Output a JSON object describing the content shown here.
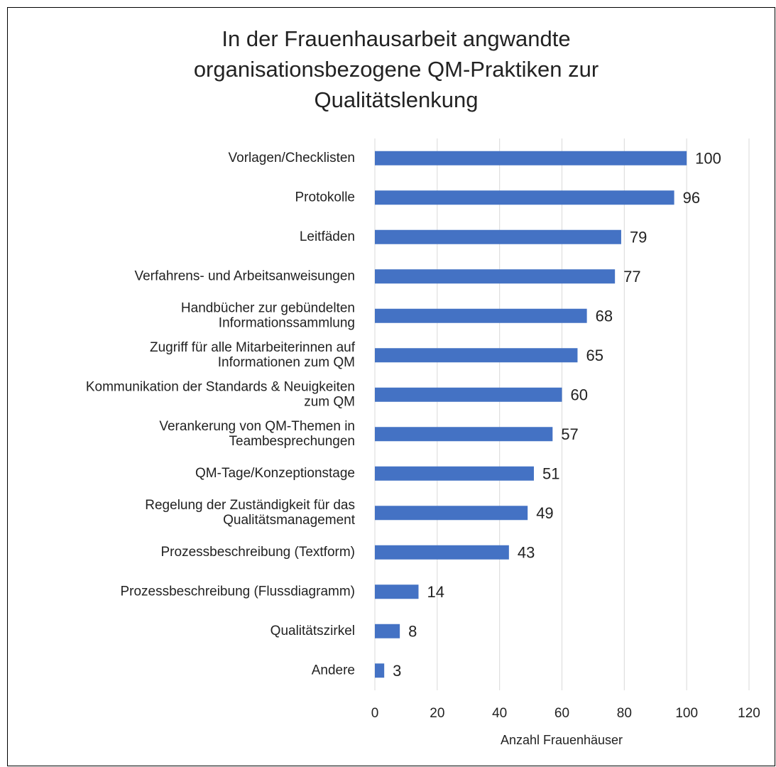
{
  "chart_data": {
    "type": "bar",
    "orientation": "horizontal",
    "title": [
      "In der Frauenhausarbeit angwandte",
      "organisationsbezogene QM-Praktiken zur",
      "Qualitätslenkung"
    ],
    "x_label": "Anzahl Frauenhäuser",
    "categories": [
      "Vorlagen/Checklisten",
      "Protokolle",
      "Leitfäden",
      "Verfahrens- und Arbeitsanweisungen",
      [
        "Handbücher zur gebündelten",
        "Informationssammlung"
      ],
      [
        "Zugriff für alle Mitarbeiterinnen auf",
        "Informationen zum QM"
      ],
      [
        "Kommunikation der Standards & Neuigkeiten",
        "zum QM"
      ],
      [
        "Verankerung von QM-Themen in",
        "Teambesprechungen"
      ],
      "QM-Tage/Konzeptionstage",
      [
        "Regelung der Zuständigkeit für das",
        "Qualitätsmanagement"
      ],
      "Prozessbeschreibung (Textform)",
      "Prozessbeschreibung (Flussdiagramm)",
      "Qualitätszirkel",
      "Andere"
    ],
    "values": [
      100,
      96,
      79,
      77,
      68,
      65,
      60,
      57,
      51,
      49,
      43,
      14,
      8,
      3
    ],
    "color": "#4472c4",
    "xlim": [
      0,
      120
    ],
    "xticks": [
      0,
      20,
      40,
      60,
      80,
      100,
      120
    ],
    "grid": true
  }
}
